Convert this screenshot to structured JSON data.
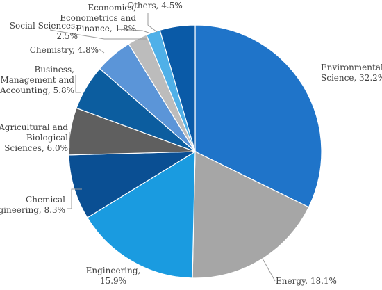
{
  "chart_data": {
    "type": "pie",
    "title": "",
    "slices": [
      {
        "label": "Environmental Science, 32.2%",
        "value": 32.2,
        "color": "#1f74c9"
      },
      {
        "label": "Energy, 18.1%",
        "value": 18.1,
        "color": "#a6a6a6"
      },
      {
        "label": "Engineering, 15.9%",
        "value": 15.9,
        "color": "#1a9be0"
      },
      {
        "label": "Chemical Engineering, 8.3%",
        "value": 8.3,
        "color": "#0a4f93"
      },
      {
        "label": "Agricultural and Biological Sciences, 6.0%",
        "value": 6.0,
        "color": "#5f5f5f"
      },
      {
        "label": "Business, Management and Accounting, 5.8%",
        "value": 5.8,
        "color": "#0c5d9f"
      },
      {
        "label": "Chemistry, 4.8%",
        "value": 4.8,
        "color": "#5b95d8"
      },
      {
        "label": "Social Sciences, 2.5%",
        "value": 2.5,
        "color": "#bcbcbc"
      },
      {
        "label": "Economics, Econometrics and Finance, 1.8%",
        "value": 1.8,
        "color": "#4fb0e8"
      },
      {
        "label": "Others, 4.5%",
        "value": 4.5,
        "color": "#0a5aa7"
      }
    ],
    "label_lines": [
      [
        "Environmental",
        "Science, 32.2%"
      ],
      [
        "Energy, 18.1%"
      ],
      [
        "Engineering,",
        "15.9%"
      ],
      [
        "Chemical",
        "Engineering, 8.3%"
      ],
      [
        "Agricultural and",
        "Biological",
        "Sciences, 6.0%"
      ],
      [
        "Business,",
        "Management and",
        "Accounting, 5.8%"
      ],
      [
        "Chemistry, 4.8%"
      ],
      [
        "Social Sciences,",
        "2.5%"
      ],
      [
        "Economics,",
        "Econometrics and",
        "Finance, 1.8%"
      ],
      [
        "Others, 4.5%"
      ]
    ]
  }
}
